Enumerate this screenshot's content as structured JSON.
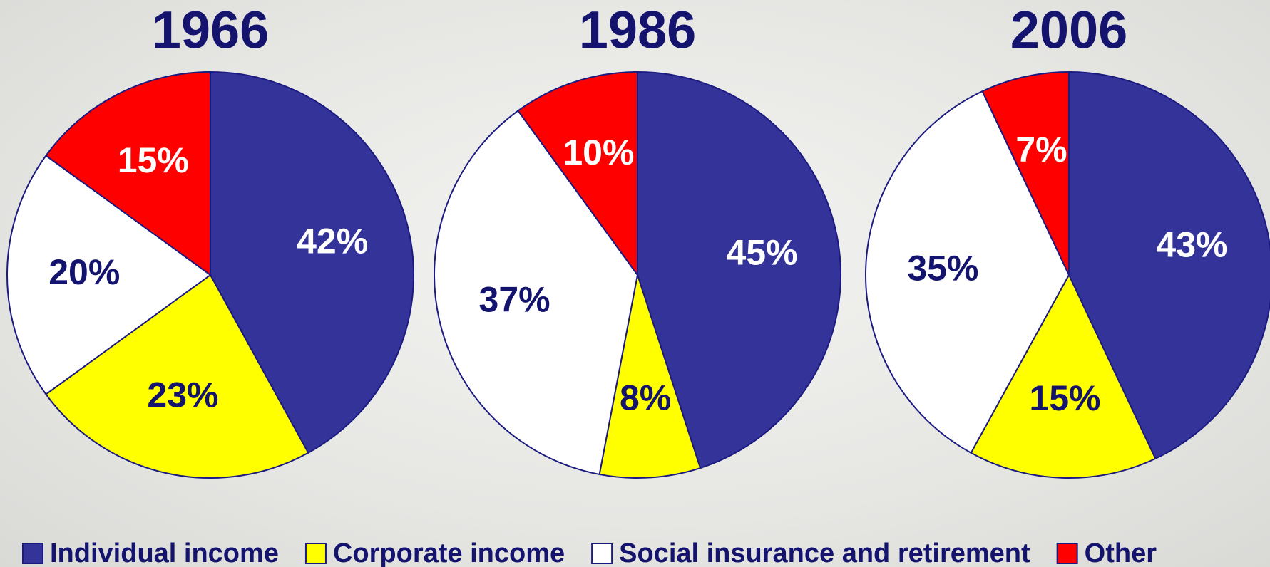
{
  "legend": {
    "names": [
      "Individual income",
      "Corporate income",
      "Social insurance and retirement",
      "Other"
    ],
    "colors": [
      "#333399",
      "#ffff00",
      "#ffffff",
      "#ff0000"
    ]
  },
  "chart_data": [
    {
      "type": "pie",
      "title": "1966",
      "values": [
        42,
        23,
        20,
        15
      ],
      "value_labels": [
        "42%",
        "23%",
        "20%",
        "15%"
      ]
    },
    {
      "type": "pie",
      "title": "1986",
      "values": [
        45,
        8,
        37,
        10
      ],
      "value_labels": [
        "45%",
        "8%",
        "37%",
        "10%"
      ]
    },
    {
      "type": "pie",
      "title": "2006",
      "values": [
        43,
        15,
        35,
        7
      ],
      "value_labels": [
        "43%",
        "15%",
        "35%",
        "7%"
      ]
    }
  ]
}
